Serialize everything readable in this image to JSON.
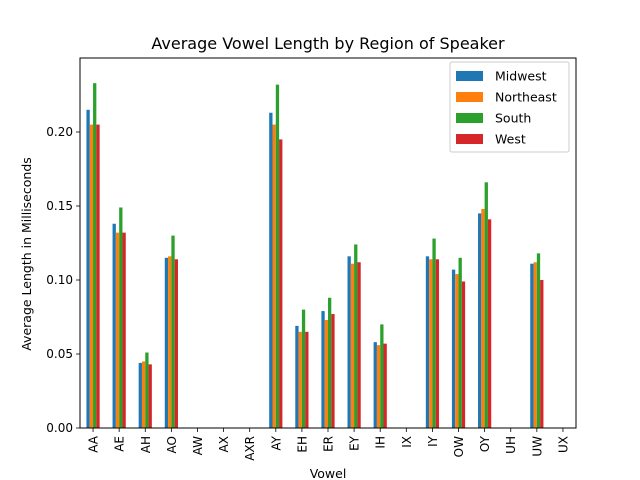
{
  "chart_data": {
    "type": "bar",
    "title": "Average Vowel Length by Region of Speaker",
    "xlabel": "Vowel",
    "ylabel": "Average Length in Milliseconds",
    "ylim": [
      0,
      0.25
    ],
    "yticks": [
      "0.00",
      "0.05",
      "0.10",
      "0.15",
      "0.20"
    ],
    "ytick_values": [
      0,
      0.05,
      0.1,
      0.15,
      0.2
    ],
    "legend_position": "top-right",
    "grid": false,
    "categories": [
      "AA",
      "AE",
      "AH",
      "AO",
      "AW",
      "AX",
      "AXR",
      "AY",
      "EH",
      "ER",
      "EY",
      "IH",
      "IX",
      "IY",
      "OW",
      "OY",
      "UH",
      "UW",
      "UX"
    ],
    "series": [
      {
        "name": "Midwest",
        "color": "#1f77b4",
        "values": [
          0.215,
          0.138,
          0.044,
          0.115,
          null,
          null,
          null,
          0.213,
          0.069,
          0.079,
          0.116,
          0.058,
          null,
          0.116,
          0.107,
          0.145,
          null,
          0.111,
          null
        ]
      },
      {
        "name": "Northeast",
        "color": "#ff7f0e",
        "values": [
          0.205,
          0.132,
          0.045,
          0.116,
          null,
          null,
          null,
          0.205,
          0.065,
          0.073,
          0.111,
          0.056,
          null,
          0.114,
          0.104,
          0.148,
          null,
          0.112,
          null
        ]
      },
      {
        "name": "South",
        "color": "#2ca02c",
        "values": [
          0.233,
          0.149,
          0.051,
          0.13,
          null,
          null,
          null,
          0.232,
          0.08,
          0.088,
          0.124,
          0.07,
          null,
          0.128,
          0.115,
          0.166,
          null,
          0.118,
          null
        ]
      },
      {
        "name": "West",
        "color": "#d62728",
        "values": [
          0.205,
          0.132,
          0.043,
          0.114,
          null,
          null,
          null,
          0.195,
          0.065,
          0.077,
          0.112,
          0.057,
          null,
          0.114,
          0.099,
          0.141,
          null,
          0.1,
          null
        ]
      }
    ]
  }
}
